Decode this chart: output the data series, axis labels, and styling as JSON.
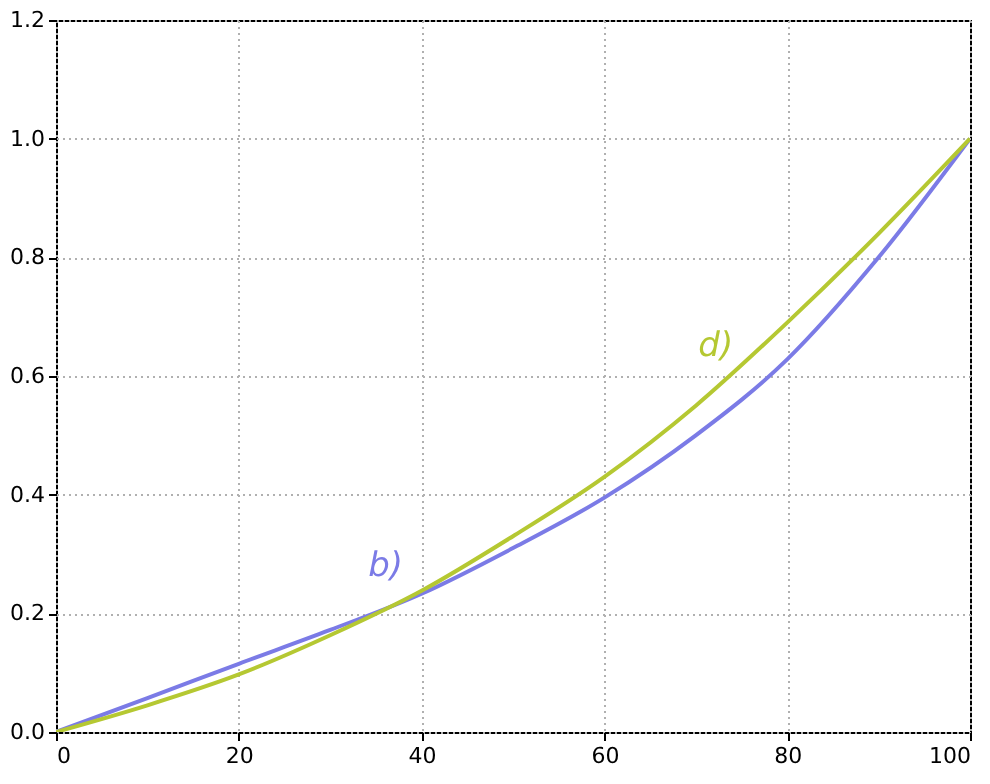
{
  "chart_data": {
    "type": "line",
    "x": [
      0,
      10,
      20,
      30,
      40,
      50,
      60,
      70,
      80,
      90,
      100
    ],
    "series": [
      {
        "name": "b)",
        "color": "#7b7be6",
        "values": [
          0,
          0.057,
          0.115,
          0.172,
          0.233,
          0.31,
          0.395,
          0.5,
          0.628,
          0.8,
          1.0
        ]
      },
      {
        "name": "d)",
        "color": "#b5c832",
        "values": [
          0,
          0.045,
          0.097,
          0.163,
          0.238,
          0.33,
          0.43,
          0.55,
          0.69,
          0.84,
          1.0
        ]
      }
    ],
    "xlim": [
      0,
      100
    ],
    "xticks": [
      0,
      20,
      40,
      60,
      80,
      100
    ],
    "ylim": [
      0,
      1.2
    ],
    "yticks": [
      {
        "value": 0,
        "label": "0.0"
      },
      {
        "value": 0.2,
        "label": "0.2"
      },
      {
        "value": 0.4,
        "label": "0.4"
      },
      {
        "value": 0.6,
        "label": "0.6"
      },
      {
        "value": 0.8,
        "label": "0.8"
      },
      {
        "value": 1,
        "label": "1.0"
      },
      {
        "value": 1.2,
        "label": "1.2"
      }
    ],
    "grid": true,
    "marker": "none",
    "line_style": "solid"
  }
}
